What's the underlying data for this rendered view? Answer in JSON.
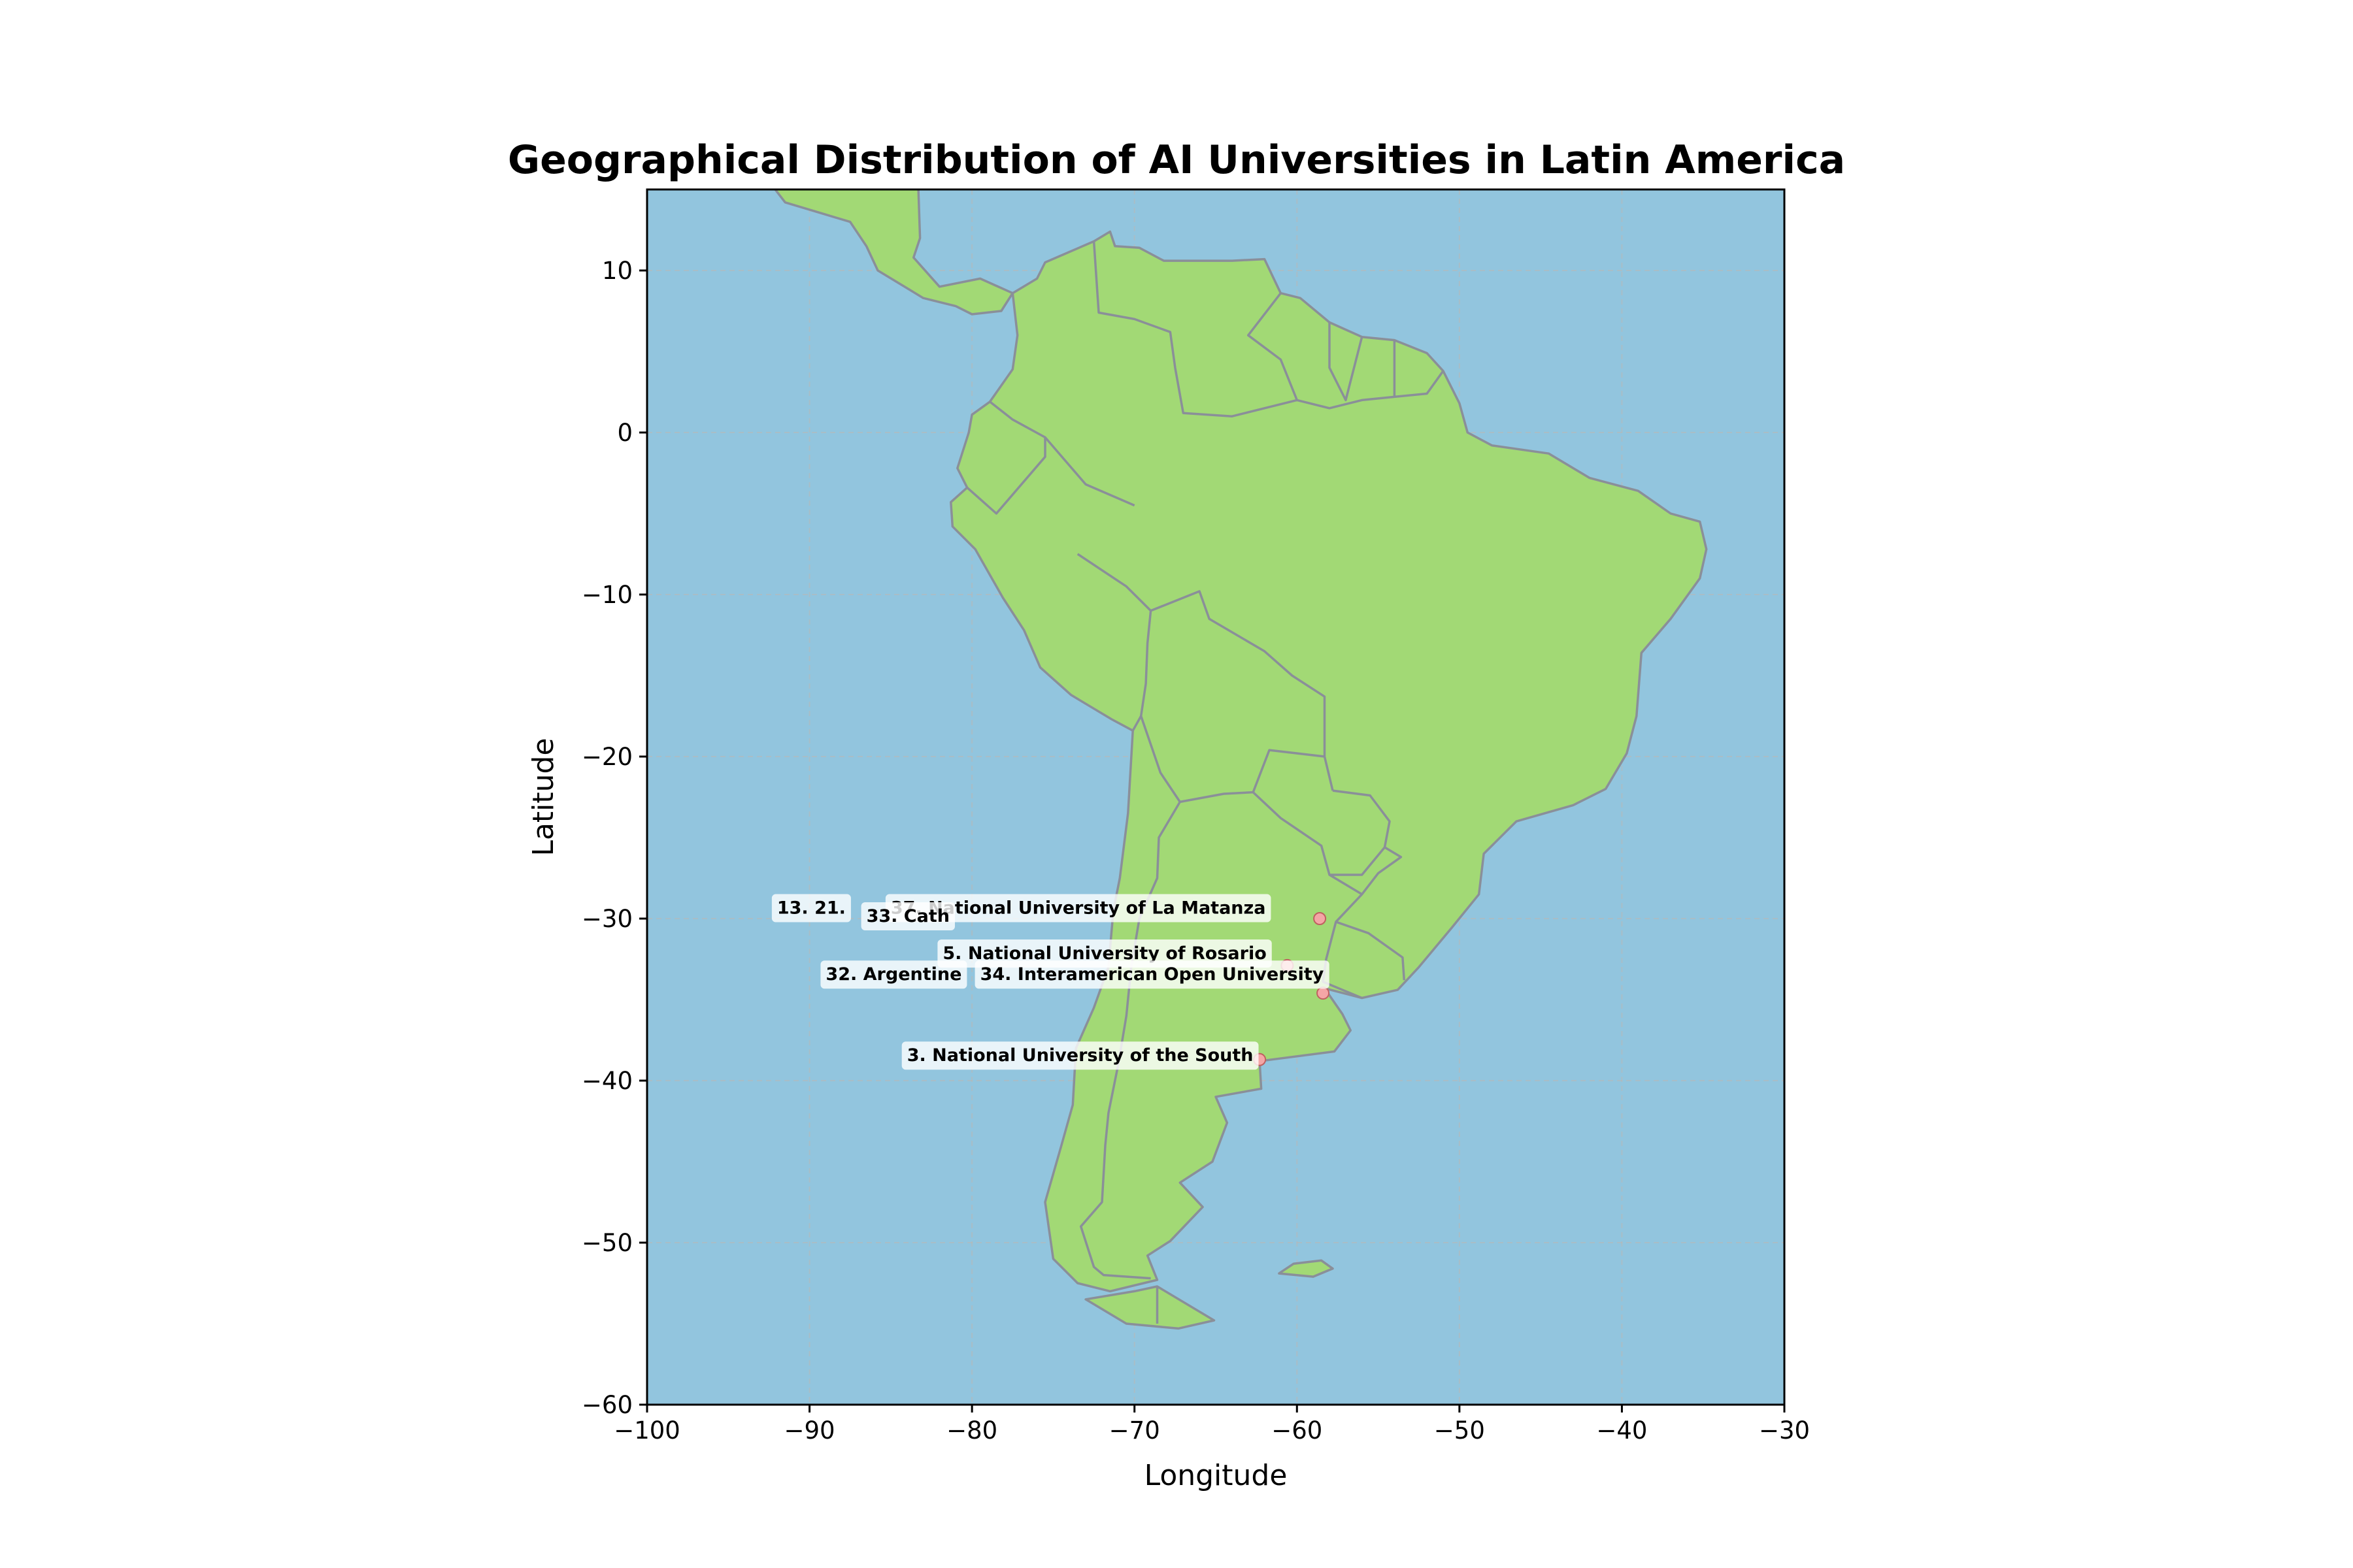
{
  "map": {
    "title": "Geographical Distribution of AI Universities in Latin America",
    "xlabel": "Longitude",
    "ylabel": "Latitude",
    "colors": {
      "ocean": "#92c5de",
      "land": "#a2d975",
      "border": "#8a8f99",
      "marker": "#f4a6a6"
    },
    "x_ticks": [
      "−100",
      "−90",
      "−80",
      "−70",
      "−60",
      "−50",
      "−40",
      "−30"
    ],
    "y_ticks": [
      "10",
      "0",
      "−10",
      "−20",
      "−30",
      "−40",
      "−50",
      "−60"
    ],
    "labels": [
      {
        "text": "13. 21. ",
        "lon": -92.0,
        "lat": -29.7
      },
      {
        "text": "37. National University of La Matanza",
        "lon": -85.0,
        "lat": -29.7
      },
      {
        "text": "33. Cath",
        "lon": -86.5,
        "lat": -30.2
      },
      {
        "text": "5. National University of Rosario",
        "lon": -81.8,
        "lat": -32.5
      },
      {
        "text": "32. Argentine",
        "lon": -89.0,
        "lat": -33.8
      },
      {
        "text": "34. Interamerican Open University",
        "lon": -79.5,
        "lat": -33.8
      },
      {
        "text": "3. National University of the South",
        "lon": -84.0,
        "lat": -38.8
      }
    ]
  },
  "chart_data": {
    "type": "map",
    "title": "Geographical Distribution of AI Universities in Latin America",
    "xlabel": "Longitude",
    "ylabel": "Latitude",
    "xlim": [
      -100,
      -30
    ],
    "ylim": [
      -60,
      15
    ],
    "grid": true,
    "points": [
      {
        "name": "37. National University of La Matanza",
        "lon": -58.6,
        "lat": -30.0
      },
      {
        "name": "5. National University of Rosario",
        "lon": -60.6,
        "lat": -32.9
      },
      {
        "name": "34. Interamerican Open University",
        "lon": -58.4,
        "lat": -34.6
      },
      {
        "name": "3. National University of the South",
        "lon": -62.3,
        "lat": -38.7
      }
    ]
  }
}
